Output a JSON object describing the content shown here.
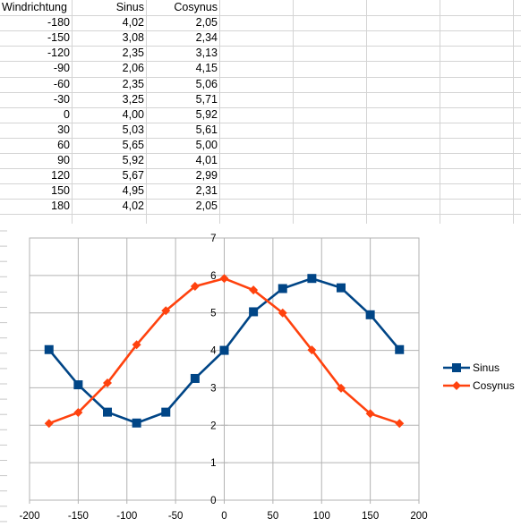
{
  "sheet": {
    "headers": [
      "Windrichtung",
      "Sinus",
      "Cosynus"
    ],
    "rows": [
      [
        "-180",
        "4,02",
        "2,05"
      ],
      [
        "-150",
        "3,08",
        "2,34"
      ],
      [
        "-120",
        "2,35",
        "3,13"
      ],
      [
        "-90",
        "2,06",
        "4,15"
      ],
      [
        "-60",
        "2,35",
        "5,06"
      ],
      [
        "-30",
        "3,25",
        "5,71"
      ],
      [
        "0",
        "4,00",
        "5,92"
      ],
      [
        "30",
        "5,03",
        "5,61"
      ],
      [
        "60",
        "5,65",
        "5,00"
      ],
      [
        "90",
        "5,92",
        "4,01"
      ],
      [
        "120",
        "5,67",
        "2,99"
      ],
      [
        "150",
        "4,95",
        "2,31"
      ],
      [
        "180",
        "4,02",
        "2,05"
      ]
    ]
  },
  "chart_data": {
    "type": "line",
    "x": [
      -180,
      -150,
      -120,
      -90,
      -60,
      -30,
      0,
      30,
      60,
      90,
      120,
      150,
      180
    ],
    "series": [
      {
        "name": "Sinus",
        "color": "#004586",
        "marker": "square",
        "values": [
          4.02,
          3.08,
          2.35,
          2.06,
          2.35,
          3.25,
          4.0,
          5.03,
          5.65,
          5.92,
          5.67,
          4.95,
          4.02
        ]
      },
      {
        "name": "Cosynus",
        "color": "#ff420e",
        "marker": "diamond",
        "values": [
          2.05,
          2.34,
          3.13,
          4.15,
          5.06,
          5.71,
          5.92,
          5.61,
          5.0,
          4.01,
          2.99,
          2.31,
          2.05
        ]
      }
    ],
    "xlim": [
      -200,
      200
    ],
    "ylim": [
      0,
      7
    ],
    "xticks": [
      "-200",
      "-150",
      "-100",
      "-50",
      "0",
      "50",
      "100",
      "150",
      "200"
    ],
    "yticks": [
      "0",
      "1",
      "2",
      "3",
      "4",
      "5",
      "6",
      "7"
    ],
    "grid": true,
    "legend_position": "right"
  }
}
